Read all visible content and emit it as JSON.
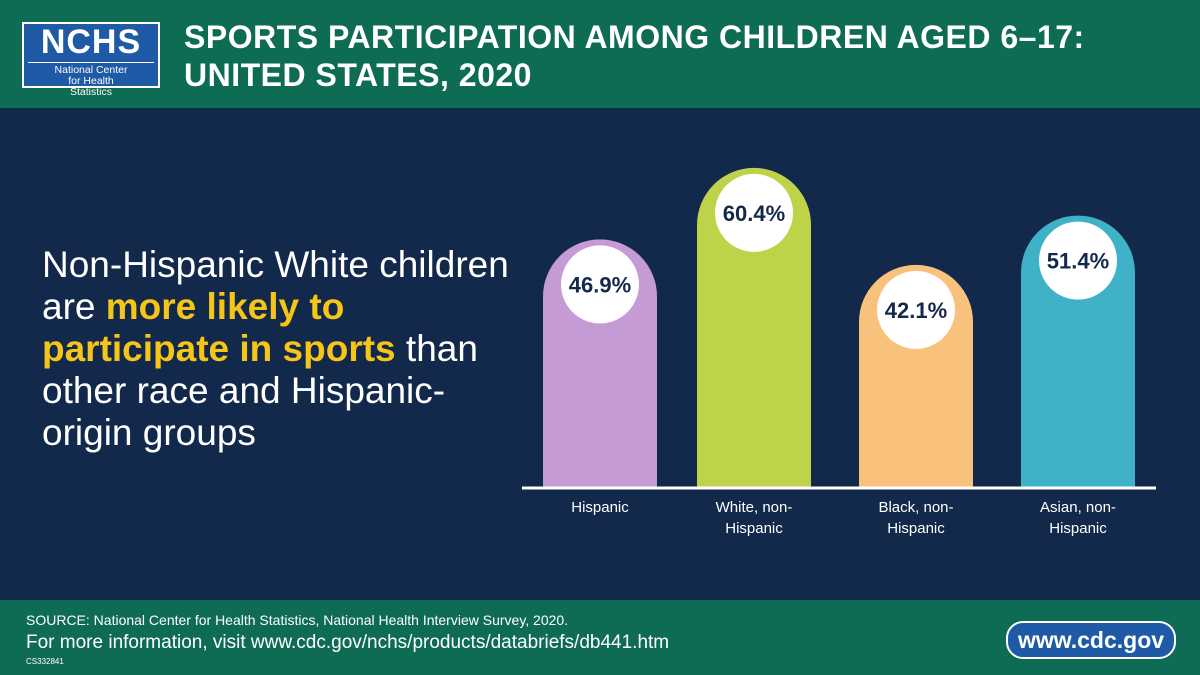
{
  "header": {
    "logo": "NCHS",
    "logo_subtitle": "National Center for Health Statistics",
    "title": "SPORTS PARTICIPATION AMONG CHILDREN AGED 6–17: UNITED STATES, 2020"
  },
  "headline": [
    "Non-Hispanic White children are ",
    "more likely to participate in sports",
    " than other race and Hispanic-origin groups"
  ],
  "chart_data": {
    "type": "bar",
    "categories": [
      "Hispanic",
      "White, non-Hispanic",
      "Black, non-Hispanic",
      "Asian, non-Hispanic"
    ],
    "values": [
      46.9,
      60.4,
      42.1,
      51.4
    ],
    "value_labels": [
      "46.9%",
      "60.4%",
      "42.1%",
      "51.4%"
    ],
    "colors": [
      "#c59bd6",
      "#bfd34a",
      "#f8c27c",
      "#3fb2c8"
    ]
  },
  "footer": {
    "source": "SOURCE: National Center for Health Statistics, National Health Interview Survey, 2020.",
    "more_info": "For more information, visit www.cdc.gov/nchs/products/databriefs/db441.htm",
    "code": "CS332841",
    "website": "www.cdc.gov"
  }
}
